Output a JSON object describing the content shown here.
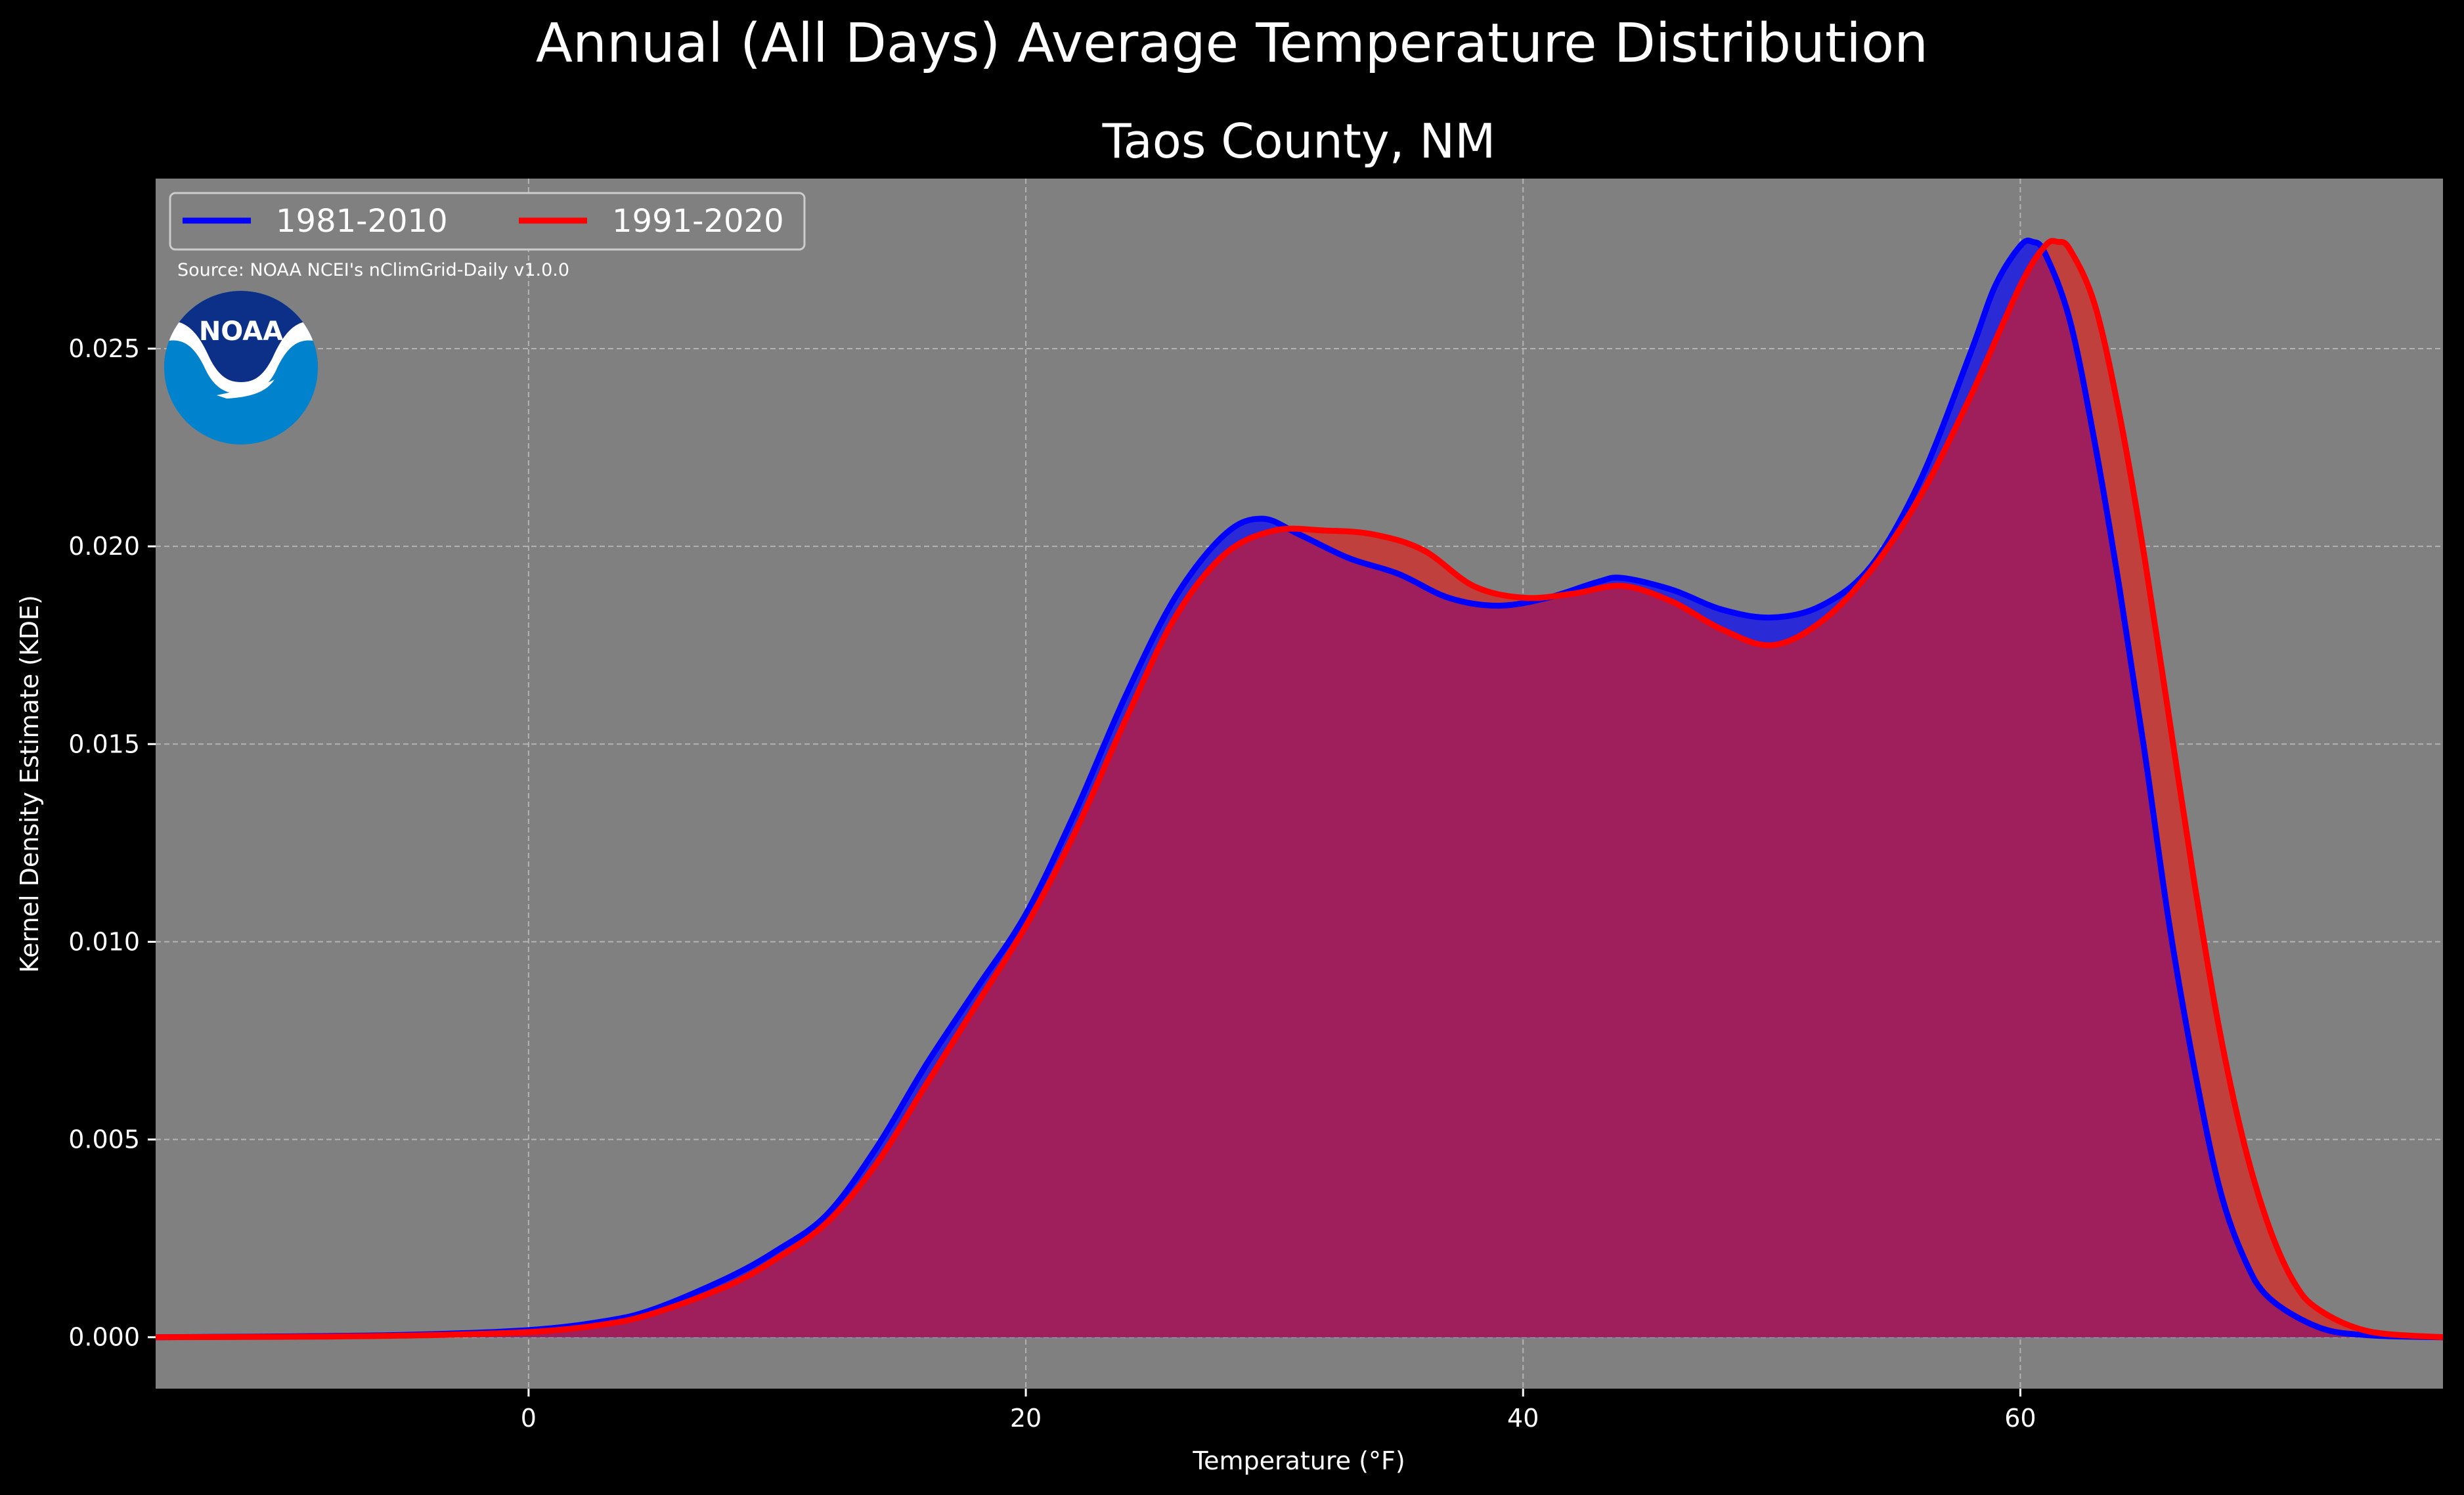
{
  "suptitle": "Annual (All Days) Average Temperature Distribution",
  "chart_data": {
    "type": "area",
    "title": "Taos County, NM",
    "xlabel": "Temperature (°F)",
    "ylabel": "Kernel Density Estimate (KDE)",
    "xlim": [
      -15,
      77
    ],
    "ylim": [
      -0.0013,
      0.0293
    ],
    "x_ticks": [
      0,
      20,
      40,
      60
    ],
    "x_tick_labels": [
      "0",
      "20",
      "40",
      "60"
    ],
    "y_ticks": [
      0.0,
      0.005,
      0.01,
      0.015,
      0.02,
      0.025
    ],
    "y_tick_labels": [
      "0.000",
      "0.005",
      "0.010",
      "0.015",
      "0.020",
      "0.025"
    ],
    "grid": true,
    "legend_position": "upper-left",
    "annotation": "Source: NOAA NCEI's nClimGrid-Daily v1.0.0",
    "logo_text": "NOAA",
    "colors": {
      "background": "#000000",
      "axes_face": "#808080",
      "series_1981": "#0000ff",
      "series_1991": "#ff0000",
      "fill_1981": "#2a2ad6",
      "fill_overlap": "#9e1f5c",
      "fill_1991": "#c0403d",
      "logo_dark": "#0c2f87",
      "logo_light": "#0083cc"
    },
    "series": [
      {
        "name": "1981-2010",
        "color": "#0000ff",
        "x": [
          -15,
          -10,
          -5,
          0,
          3,
          5,
          8,
          10,
          12,
          14,
          16,
          18,
          20,
          22,
          24,
          26,
          28,
          29.5,
          31,
          33,
          35,
          37,
          39,
          41,
          43,
          44,
          46,
          48,
          50,
          52,
          54,
          56,
          58,
          59,
          60,
          60.5,
          61,
          62,
          63,
          64,
          65,
          66,
          67,
          68,
          69,
          70,
          72,
          74,
          77
        ],
        "y": [
          0.0,
          2e-05,
          6e-05,
          0.00018,
          0.0004,
          0.0007,
          0.0015,
          0.0022,
          0.0031,
          0.0048,
          0.0069,
          0.0088,
          0.0107,
          0.0133,
          0.0162,
          0.0187,
          0.0203,
          0.0207,
          0.0203,
          0.0197,
          0.0193,
          0.0187,
          0.0185,
          0.0187,
          0.0191,
          0.0192,
          0.0189,
          0.0184,
          0.0182,
          0.0185,
          0.0195,
          0.0217,
          0.0249,
          0.0266,
          0.0276,
          0.0277,
          0.0274,
          0.0257,
          0.0226,
          0.0189,
          0.0148,
          0.0104,
          0.0068,
          0.0038,
          0.002,
          0.001,
          0.00025,
          5e-05,
          0.0
        ]
      },
      {
        "name": "1991-2020",
        "color": "#ff0000",
        "x": [
          -15,
          -10,
          -5,
          0,
          3,
          5,
          8,
          10,
          12,
          14,
          16,
          18,
          20,
          22,
          24,
          26,
          28,
          30,
          32,
          34,
          36,
          38,
          40,
          42,
          44,
          46,
          48,
          50,
          52,
          54,
          56,
          58,
          60,
          61,
          61.5,
          62,
          63,
          64,
          65,
          66,
          67,
          68,
          69,
          70,
          71,
          72,
          74,
          77
        ],
        "y": [
          0.0,
          1e-05,
          4e-05,
          0.00013,
          0.00032,
          0.0006,
          0.0013,
          0.002,
          0.0029,
          0.0044,
          0.0064,
          0.0084,
          0.0104,
          0.0128,
          0.0156,
          0.0182,
          0.0198,
          0.0204,
          0.0204,
          0.0203,
          0.0199,
          0.019,
          0.0187,
          0.0188,
          0.019,
          0.0186,
          0.0179,
          0.0175,
          0.0181,
          0.0194,
          0.0213,
          0.0238,
          0.0266,
          0.0276,
          0.0277,
          0.0275,
          0.0261,
          0.0233,
          0.0197,
          0.0156,
          0.0115,
          0.0078,
          0.0049,
          0.0028,
          0.0014,
          0.0007,
          0.00015,
          0.0
        ]
      }
    ]
  }
}
